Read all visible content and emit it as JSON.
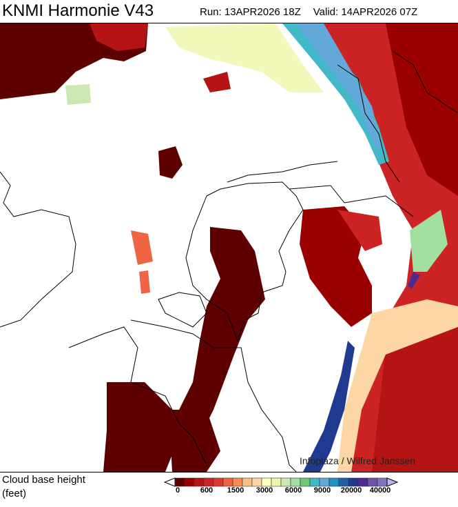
{
  "header": {
    "title": "KNMI Harmonie V43",
    "run": "Run: 13APR2026 18Z",
    "valid": "Valid: 14APR2026 07Z"
  },
  "map": {
    "credit": "Infoplaza / Wilfred Janssen",
    "region": "Netherlands, Belgium, North Sea, NW Germany"
  },
  "legend": {
    "title_line1": "Cloud base height",
    "title_line2": "(feet)",
    "unit": "feet",
    "colors": [
      "#5e0000",
      "#9a0000",
      "#b51414",
      "#cc2424",
      "#e03a30",
      "#ef6442",
      "#f68c52",
      "#fbbd84",
      "#fcd6a4",
      "#ffffc2",
      "#eef6a8",
      "#cbe7b2",
      "#a2e0a2",
      "#70c870",
      "#42b8c8",
      "#62a8d8",
      "#2090c2",
      "#2062a8",
      "#203a90",
      "#502a90",
      "#7052a8",
      "#8272c2"
    ],
    "under_color": "#ffffff",
    "over_color": "#b8b8e4",
    "ticks": [
      {
        "label": "0",
        "index": 0
      },
      {
        "label": "600",
        "index": 3
      },
      {
        "label": "1500",
        "index": 6
      },
      {
        "label": "3000",
        "index": 9
      },
      {
        "label": "6000",
        "index": 12
      },
      {
        "label": "9000",
        "index": 15
      },
      {
        "label": "20000",
        "index": 17
      },
      {
        "label": "40000",
        "index": 20
      }
    ]
  }
}
